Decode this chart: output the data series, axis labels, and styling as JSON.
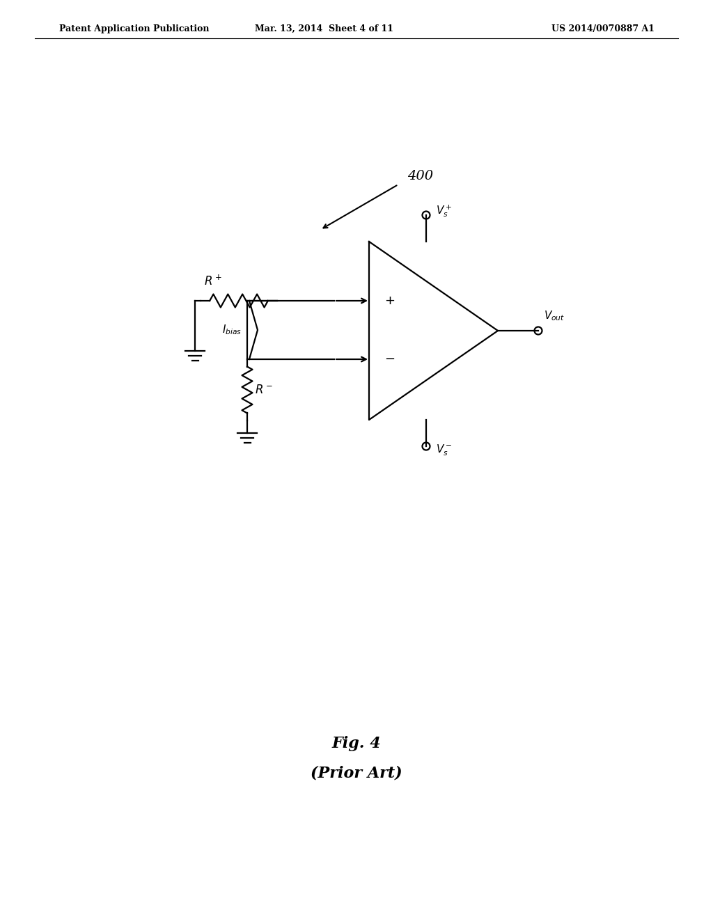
{
  "bg_color": "#ffffff",
  "header_left": "Patent Application Publication",
  "header_mid": "Mar. 13, 2014  Sheet 4 of 11",
  "header_right": "US 2014/0070887 A1",
  "fig_label": "400",
  "caption_line1": "Fig. 4",
  "caption_line2": "(Prior Art)",
  "lw": 1.6,
  "line_color": "#000000"
}
